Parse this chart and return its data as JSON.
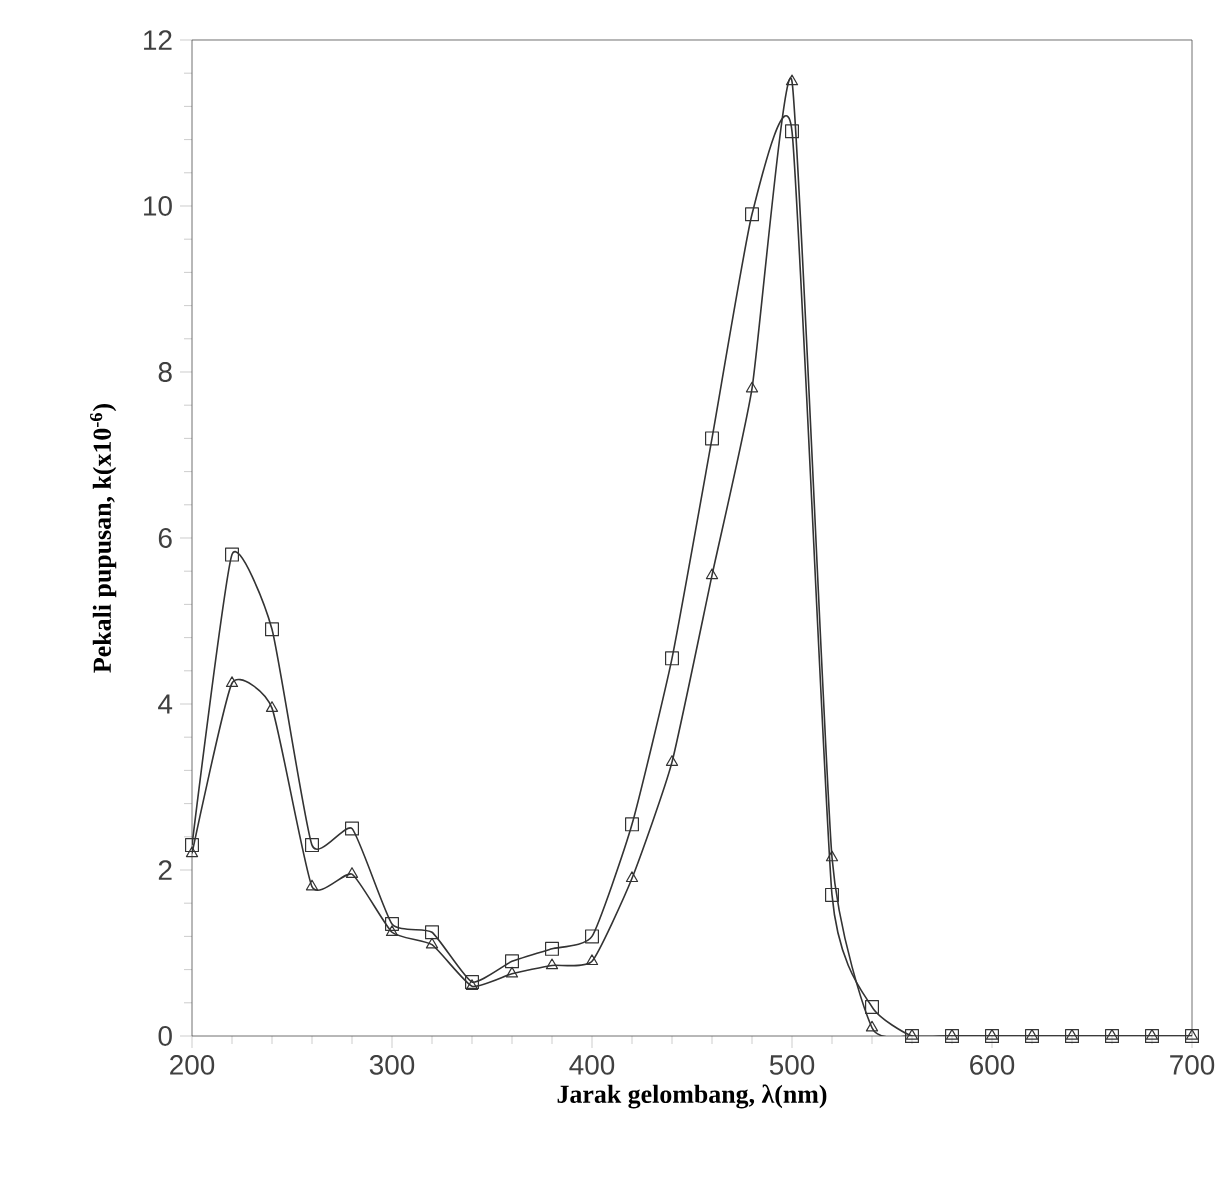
{
  "chart_data": {
    "type": "line",
    "xlabel": "Jarak gelombang, λ(nm)",
    "ylabel": "Pekali pupusan, k(x10$^{-6}$)",
    "x": [
      200,
      220,
      240,
      260,
      280,
      300,
      320,
      340,
      360,
      380,
      400,
      420,
      440,
      460,
      480,
      500,
      520,
      540,
      560,
      580,
      600,
      620,
      640,
      660,
      680,
      700
    ],
    "series": [
      {
        "color": "#333333",
        "marker": "square",
        "values": [
          2.3,
          5.8,
          4.9,
          2.3,
          2.5,
          1.35,
          1.25,
          0.65,
          0.9,
          1.05,
          1.2,
          2.55,
          4.55,
          7.2,
          9.9,
          10.9,
          1.7,
          0.35,
          0,
          0,
          0,
          0,
          0,
          0,
          0,
          0
        ]
      },
      {
        "color": "#333333",
        "marker": "triangle",
        "values": [
          2.2,
          4.25,
          3.95,
          1.8,
          1.95,
          1.25,
          1.1,
          0.6,
          0.75,
          0.85,
          0.9,
          1.9,
          3.3,
          5.55,
          7.8,
          11.5,
          2.15,
          0.1,
          0,
          0,
          0,
          0,
          0,
          0,
          0,
          0
        ]
      }
    ],
    "xlim": [
      200,
      700
    ],
    "xticks": [
      200,
      300,
      400,
      500,
      600,
      700
    ],
    "ylim": [
      0,
      12
    ],
    "yticks": [
      0,
      2,
      4,
      6,
      8,
      10,
      12
    ],
    "grid": false,
    "line_style": "solid"
  }
}
